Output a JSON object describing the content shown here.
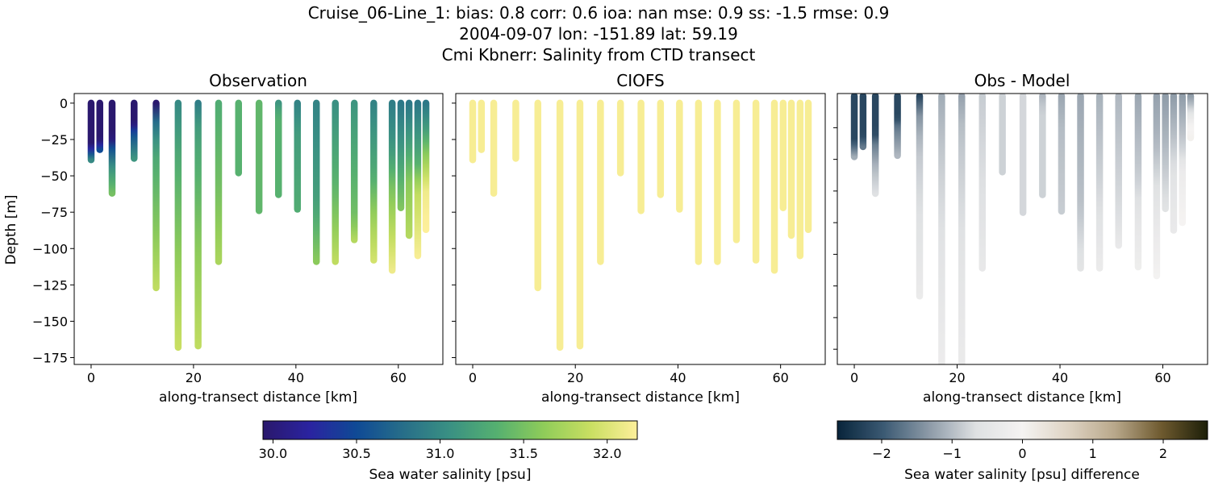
{
  "title_lines": [
    "Cruise_06-Line_1: bias: 0.8  corr: 0.6  ioa: nan  mse: 0.9  ss: -1.5  rmse: 0.9",
    "2004-09-07 lon: -151.89 lat: 59.19",
    "Cmi Kbnerr: Salinity from CTD transect"
  ],
  "chart_data": [
    {
      "type": "scatter",
      "title": "Observation",
      "xlabel": "along-transect distance [km]",
      "ylabel": "Depth [m]",
      "xlim": [
        -3.3,
        68.7
      ],
      "ylim": [
        -179.7,
        6.6
      ],
      "xticks": [
        0,
        20,
        40,
        60
      ],
      "yticks": [
        0,
        -25,
        -50,
        -75,
        -100,
        -125,
        -150,
        -175
      ],
      "ytick_labels": [
        "0",
        "−25",
        "−50",
        "−75",
        "−100",
        "−125",
        "−150",
        "−175"
      ],
      "colormap": "haline",
      "profiles": [
        {
          "x": 0.0,
          "bottom": 39,
          "stops": [
            [
              0,
              29.95
            ],
            [
              28,
              29.95
            ],
            [
              33,
              30.4
            ],
            [
              39,
              31.0
            ]
          ]
        },
        {
          "x": 1.7,
          "bottom": 32,
          "stops": [
            [
              0,
              29.95
            ],
            [
              25,
              29.95
            ],
            [
              32,
              30.5
            ]
          ]
        },
        {
          "x": 4.1,
          "bottom": 62,
          "stops": [
            [
              0,
              29.95
            ],
            [
              24,
              29.95
            ],
            [
              30,
              30.5
            ],
            [
              45,
              31.1
            ],
            [
              62,
              31.5
            ]
          ]
        },
        {
          "x": 8.4,
          "bottom": 38,
          "stops": [
            [
              0,
              29.95
            ],
            [
              14,
              29.95
            ],
            [
              20,
              30.5
            ],
            [
              38,
              31.1
            ]
          ]
        },
        {
          "x": 12.7,
          "bottom": 127,
          "stops": [
            [
              0,
              29.95
            ],
            [
              5,
              30.3
            ],
            [
              15,
              30.9
            ],
            [
              40,
              31.3
            ],
            [
              90,
              31.6
            ],
            [
              127,
              31.85
            ]
          ]
        },
        {
          "x": 17.0,
          "bottom": 168,
          "stops": [
            [
              0,
              31.0
            ],
            [
              40,
              31.3
            ],
            [
              100,
              31.6
            ],
            [
              168,
              31.9
            ]
          ]
        },
        {
          "x": 20.9,
          "bottom": 167,
          "stops": [
            [
              0,
              30.9
            ],
            [
              20,
              31.2
            ],
            [
              100,
              31.6
            ],
            [
              167,
              31.85
            ]
          ]
        },
        {
          "x": 24.9,
          "bottom": 109,
          "stops": [
            [
              0,
              31.3
            ],
            [
              60,
              31.5
            ],
            [
              109,
              31.75
            ]
          ]
        },
        {
          "x": 28.8,
          "bottom": 48,
          "stops": [
            [
              0,
              31.35
            ],
            [
              48,
              31.35
            ]
          ]
        },
        {
          "x": 32.8,
          "bottom": 74,
          "stops": [
            [
              0,
              31.4
            ],
            [
              74,
              31.4
            ]
          ]
        },
        {
          "x": 36.6,
          "bottom": 63,
          "stops": [
            [
              0,
              31.1
            ],
            [
              10,
              31.35
            ],
            [
              63,
              31.35
            ]
          ]
        },
        {
          "x": 40.3,
          "bottom": 73,
          "stops": [
            [
              0,
              30.95
            ],
            [
              20,
              31.15
            ],
            [
              73,
              31.3
            ]
          ]
        },
        {
          "x": 44.0,
          "bottom": 109,
          "stops": [
            [
              0,
              30.95
            ],
            [
              70,
              31.2
            ],
            [
              109,
              31.6
            ]
          ]
        },
        {
          "x": 47.7,
          "bottom": 109,
          "stops": [
            [
              0,
              31.05
            ],
            [
              60,
              31.4
            ],
            [
              109,
              31.85
            ]
          ]
        },
        {
          "x": 51.4,
          "bottom": 94,
          "stops": [
            [
              0,
              31.1
            ],
            [
              80,
              31.5
            ],
            [
              94,
              31.8
            ]
          ]
        },
        {
          "x": 55.2,
          "bottom": 108,
          "stops": [
            [
              0,
              30.95
            ],
            [
              50,
              31.3
            ],
            [
              80,
              31.7
            ],
            [
              108,
              31.95
            ]
          ]
        },
        {
          "x": 58.8,
          "bottom": 115,
          "stops": [
            [
              0,
              30.9
            ],
            [
              30,
              31.1
            ],
            [
              60,
              31.55
            ],
            [
              115,
              32.1
            ]
          ]
        },
        {
          "x": 60.5,
          "bottom": 72,
          "stops": [
            [
              0,
              30.85
            ],
            [
              30,
              31.1
            ],
            [
              72,
              31.55
            ]
          ]
        },
        {
          "x": 62.1,
          "bottom": 91,
          "stops": [
            [
              0,
              30.85
            ],
            [
              25,
              31.15
            ],
            [
              55,
              31.6
            ],
            [
              91,
              31.8
            ]
          ]
        },
        {
          "x": 63.8,
          "bottom": 105,
          "stops": [
            [
              0,
              30.85
            ],
            [
              40,
              31.3
            ],
            [
              60,
              31.85
            ],
            [
              105,
              32.15
            ]
          ]
        },
        {
          "x": 65.4,
          "bottom": 87,
          "stops": [
            [
              0,
              30.85
            ],
            [
              15,
              31.1
            ],
            [
              35,
              31.6
            ],
            [
              60,
              32.1
            ],
            [
              87,
              32.2
            ]
          ]
        }
      ]
    },
    {
      "type": "scatter",
      "title": "CIOFS",
      "xlabel": "along-transect distance [km]",
      "xlim": [
        -3.3,
        68.7
      ],
      "ylim": [
        -179.7,
        6.6
      ],
      "xticks": [
        0,
        20,
        40,
        60
      ],
      "colormap": "haline",
      "model_salinity": 32.15
    },
    {
      "type": "scatter",
      "title": "Obs - Model",
      "xlabel": "along-transect distance [km]",
      "xlim": [
        -3.3,
        68.7
      ],
      "ylim": [
        -212,
        2
      ],
      "xticks": [
        0,
        20,
        40,
        60
      ],
      "yticks": [
        -25,
        -50,
        -75,
        -100,
        -125,
        -150,
        -175,
        -200
      ],
      "colormap": "diff",
      "bottoms": [
        48,
        40,
        77,
        47,
        158,
        215,
        215,
        136,
        60,
        92,
        78,
        91,
        136,
        136,
        118,
        135,
        142,
        89,
        106,
        100,
        33
      ]
    }
  ],
  "colorbars": [
    {
      "label": "Sea water salinity [psu]",
      "range": [
        29.94,
        32.18
      ],
      "ticks": [
        "30.0",
        "30.5",
        "31.0",
        "31.5",
        "32.0"
      ],
      "tick_values": [
        30.0,
        30.5,
        31.0,
        31.5,
        32.0
      ],
      "colormap": "haline"
    },
    {
      "label": "Sea water salinity [psu] difference",
      "range": [
        -2.63,
        2.63
      ],
      "ticks": [
        "−2",
        "−1",
        "0",
        "1",
        "2"
      ],
      "tick_values": [
        -2,
        -1,
        0,
        1,
        2
      ],
      "colormap": "diff"
    }
  ],
  "colormaps": {
    "haline": [
      "#2a186c",
      "#2a23a0",
      "#0f4a95",
      "#276e89",
      "#3a9183",
      "#55b070",
      "#8fcc59",
      "#c9df62",
      "#fdef9a"
    ],
    "diff": [
      "#08243b",
      "#3b5a73",
      "#8e9ba8",
      "#dfe1e3",
      "#f5f3f2",
      "#ded3c3",
      "#b8a78a",
      "#6e5a2f",
      "#1c1e08"
    ]
  }
}
